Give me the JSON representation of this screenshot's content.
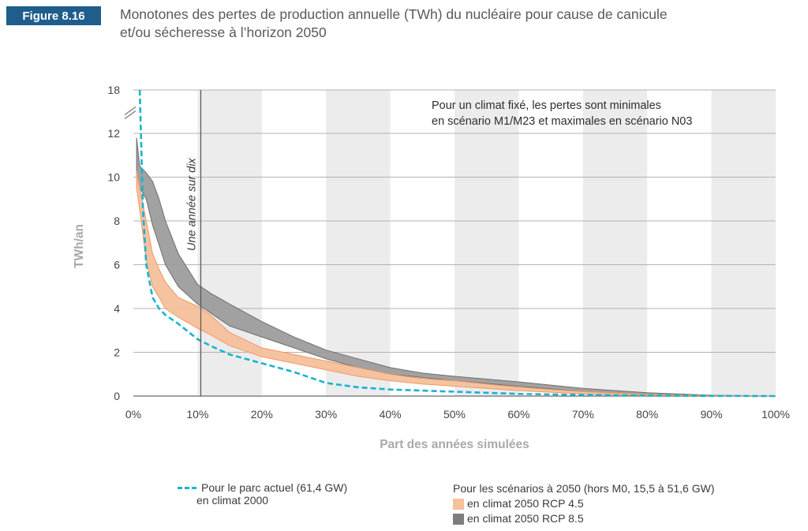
{
  "figure": {
    "badge": "Figure 8.16",
    "title_line1": "Monotones des pertes de production annuelle (TWh) du nucléaire pour cause de canicule",
    "title_line2": "et/ou sécheresse à l’horizon 2050"
  },
  "legend": {
    "current_line1": "Pour le parc actuel (61,4 GW)",
    "current_line2": "en climat 2000",
    "scenarios_title": "Pour les scénarios à 2050 (hors M0, 15,5 à 51,6 GW)",
    "rcp45": "en climat 2050 RCP 4.5",
    "rcp85": "en climat 2050 RCP 8.5"
  },
  "colors": {
    "badge": "#1f5d8c",
    "current_line": "#18b3d1",
    "rcp45_fill": "#f6c09c",
    "rcp45_stroke": "#ef9a62",
    "rcp85_fill": "#9d9d9d",
    "rcp85_stroke": "#6e6e6e",
    "gridline": "#b9b0b0",
    "stripe": "#ececed",
    "axis_label": "#a9a9a9"
  },
  "chart_data": {
    "type": "area",
    "xlabel": "Part des années simulées",
    "ylabel": "TWh/an",
    "xlim": [
      0,
      100
    ],
    "ylim": [
      0,
      18
    ],
    "xticks": [
      0,
      10,
      20,
      30,
      40,
      50,
      60,
      70,
      80,
      90,
      100
    ],
    "xtick_labels": [
      "0%",
      "10%",
      "20%",
      "30%",
      "40%",
      "50%",
      "60%",
      "70%",
      "80%",
      "90%",
      "100%"
    ],
    "yticks": [
      0,
      2,
      4,
      6,
      8,
      10,
      12,
      18
    ],
    "ytick_labels": [
      "0",
      "2",
      "4",
      "6",
      "8",
      "10",
      "12",
      "18"
    ],
    "axis_break": "between 12 and 18",
    "shaded_bands": [
      [
        10,
        20
      ],
      [
        30,
        40
      ],
      [
        50,
        60
      ],
      [
        70,
        80
      ],
      [
        90,
        100
      ]
    ],
    "grid": true,
    "annotation_vertical": {
      "x": 10.5,
      "text": "Une année sur dix"
    },
    "annotation_box": {
      "line1": "Pour un climat fixé, les pertes sont minimales",
      "line2": "en scénario M1/M23 et maximales en scénario N03"
    },
    "series": [
      {
        "name": "Pour le parc actuel (61,4 GW) en climat 2000",
        "style": "dashed-line",
        "x": [
          1,
          1.5,
          2,
          3,
          4,
          5,
          7,
          10,
          12,
          15,
          20,
          25,
          30,
          35,
          40,
          45,
          50,
          60,
          70,
          80,
          90,
          100
        ],
        "y": [
          18,
          8.5,
          6.0,
          4.5,
          4.0,
          3.7,
          3.3,
          2.6,
          2.3,
          1.9,
          1.5,
          1.1,
          0.6,
          0.4,
          0.3,
          0.25,
          0.2,
          0.1,
          0.05,
          0.02,
          0.01,
          0
        ]
      },
      {
        "name": "en climat 2050 RCP 4.5",
        "style": "band",
        "x": [
          0.5,
          1,
          2,
          3,
          4,
          5,
          7,
          10,
          12,
          15,
          20,
          25,
          30,
          35,
          40,
          45,
          50,
          60,
          70,
          80,
          90,
          100
        ],
        "y_low": [
          9.5,
          8.5,
          6.2,
          5.0,
          4.5,
          4.0,
          3.6,
          3.1,
          2.8,
          2.3,
          1.8,
          1.5,
          1.2,
          0.9,
          0.7,
          0.55,
          0.45,
          0.25,
          0.1,
          0.03,
          0.01,
          0
        ],
        "y_high": [
          10.3,
          9.5,
          8.0,
          6.5,
          5.8,
          5.2,
          4.5,
          4.1,
          3.7,
          2.9,
          2.2,
          1.9,
          1.6,
          1.3,
          1.0,
          0.8,
          0.7,
          0.4,
          0.2,
          0.08,
          0.02,
          0
        ]
      },
      {
        "name": "en climat 2050 RCP 8.5",
        "style": "band",
        "x": [
          0.5,
          1,
          2,
          3,
          4,
          5,
          7,
          10,
          12,
          15,
          20,
          25,
          30,
          35,
          40,
          45,
          50,
          60,
          70,
          80,
          90,
          100
        ],
        "y_low": [
          10.0,
          9.5,
          9.0,
          7.8,
          6.9,
          6.0,
          5.0,
          4.2,
          3.8,
          3.2,
          2.7,
          2.2,
          1.7,
          1.3,
          1.0,
          0.85,
          0.7,
          0.45,
          0.2,
          0.08,
          0.02,
          0
        ],
        "y_high": [
          11.8,
          10.5,
          10.2,
          9.8,
          9.0,
          8.0,
          6.5,
          5.1,
          4.7,
          4.2,
          3.4,
          2.7,
          2.1,
          1.7,
          1.3,
          1.05,
          0.9,
          0.65,
          0.35,
          0.15,
          0.04,
          0
        ]
      }
    ]
  }
}
